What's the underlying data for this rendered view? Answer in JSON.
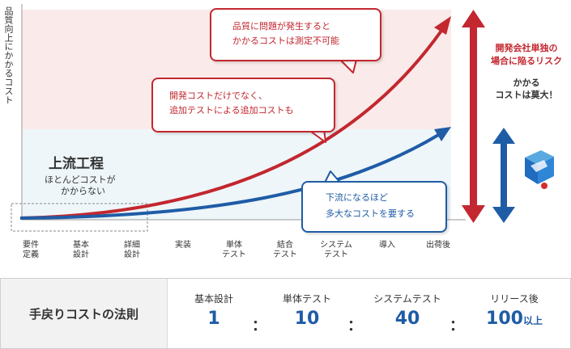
{
  "y_axis_label": "品質向上にかかるコスト",
  "upstream": {
    "title": "上流工程",
    "subtitle_line1": "ほとんどコストが",
    "subtitle_line2": "かからない"
  },
  "callouts": {
    "red_top_line1": "品質に問題が発生すると",
    "red_top_line2": "かかるコストは測定不可能",
    "red_mid_line1": "開発コストだけでなく、",
    "red_mid_line2": "追加テストによる追加コストも",
    "blue_line1": "下流になるほど",
    "blue_line2": "多大なコストを要する"
  },
  "risk": {
    "line1": "開発会社単独の",
    "line2": "場合に陥るリスク",
    "sub1": "かかる",
    "sub2": "コストは莫大！"
  },
  "stages": [
    {
      "l1": "要件",
      "l2": "定義"
    },
    {
      "l1": "基本",
      "l2": "設計"
    },
    {
      "l1": "詳細",
      "l2": "設計"
    },
    {
      "l1": "実装",
      "l2": ""
    },
    {
      "l1": "単体",
      "l2": "テスト"
    },
    {
      "l1": "結合",
      "l2": "テスト"
    },
    {
      "l1": "システム",
      "l2": "テスト"
    },
    {
      "l1": "導入",
      "l2": ""
    },
    {
      "l1": "出荷後",
      "l2": ""
    }
  ],
  "rule": {
    "title": "手戻りコストの法則",
    "items": [
      {
        "name": "基本設計",
        "value": "1",
        "suffix": ""
      },
      {
        "name": "単体テスト",
        "value": "10",
        "suffix": ""
      },
      {
        "name": "システムテスト",
        "value": "40",
        "suffix": ""
      },
      {
        "name": "リリース後",
        "value": "100",
        "suffix": "以上"
      }
    ],
    "separator": "："
  },
  "colors": {
    "red": "#c3272f",
    "blue": "#1f5ca6",
    "pink_band": "#fbeaea",
    "blue_band": "#eef6f9"
  },
  "icons": [
    "logo-cube-icon"
  ]
}
